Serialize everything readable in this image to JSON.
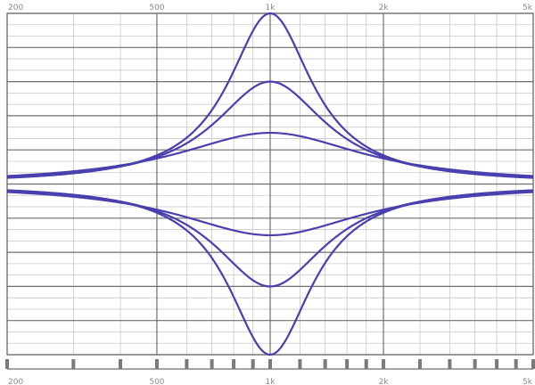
{
  "chart_data": {
    "type": "line",
    "title": "",
    "xlabel": "",
    "ylabel": "",
    "x_scale": "log",
    "xlim": [
      200,
      5000
    ],
    "ylim": [
      -15,
      15
    ],
    "y_major_step": 3,
    "grid": true,
    "x_ticks": [
      {
        "value": 200,
        "label": "200"
      },
      {
        "value": 500,
        "label": "500"
      },
      {
        "value": 1000,
        "label": "1k"
      },
      {
        "value": 2000,
        "label": "2k"
      },
      {
        "value": 5000,
        "label": "5k"
      }
    ],
    "colors": {
      "series": "#4a3fae",
      "grid_major": "#6e6e6e",
      "grid_minor": "#c8c8c8",
      "tick_label": "#8a8a8a"
    },
    "series": [
      {
        "center_hz": 1000,
        "gain_db": 15,
        "bandwidth_octaves": 0.45
      },
      {
        "center_hz": 1000,
        "gain_db": 9,
        "bandwidth_octaves": 0.6
      },
      {
        "center_hz": 1000,
        "gain_db": 4.5,
        "bandwidth_octaves": 1.0
      },
      {
        "center_hz": 1000,
        "gain_db": -4.5,
        "bandwidth_octaves": 1.0
      },
      {
        "center_hz": 1000,
        "gain_db": -9,
        "bandwidth_octaves": 0.6
      },
      {
        "center_hz": 1000,
        "gain_db": -15,
        "bandwidth_octaves": 0.45
      }
    ]
  }
}
